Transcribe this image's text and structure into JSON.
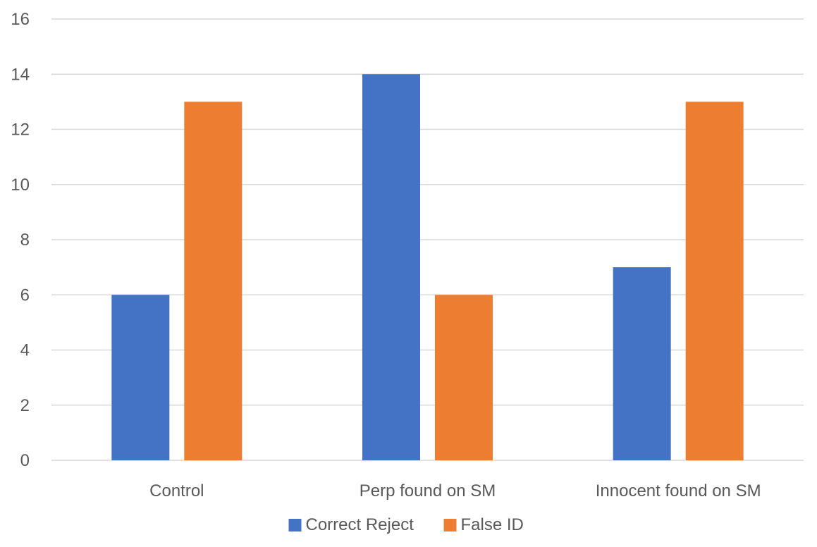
{
  "chart_data": {
    "type": "bar",
    "title": "",
    "xlabel": "",
    "ylabel": "",
    "categories": [
      "Control",
      "Perp found on SM",
      "Innocent found on SM"
    ],
    "series": [
      {
        "name": "Correct Reject",
        "values": [
          6,
          14,
          7
        ],
        "color": "#4472C4"
      },
      {
        "name": "False ID",
        "values": [
          13,
          6,
          13
        ],
        "color": "#ED7D31"
      }
    ],
    "ylim": [
      0,
      16
    ],
    "yticks": [
      0,
      2,
      4,
      6,
      8,
      10,
      12,
      14,
      16
    ],
    "grid": true,
    "legend_position": "bottom",
    "gridline_color": "#D9D9D9"
  }
}
